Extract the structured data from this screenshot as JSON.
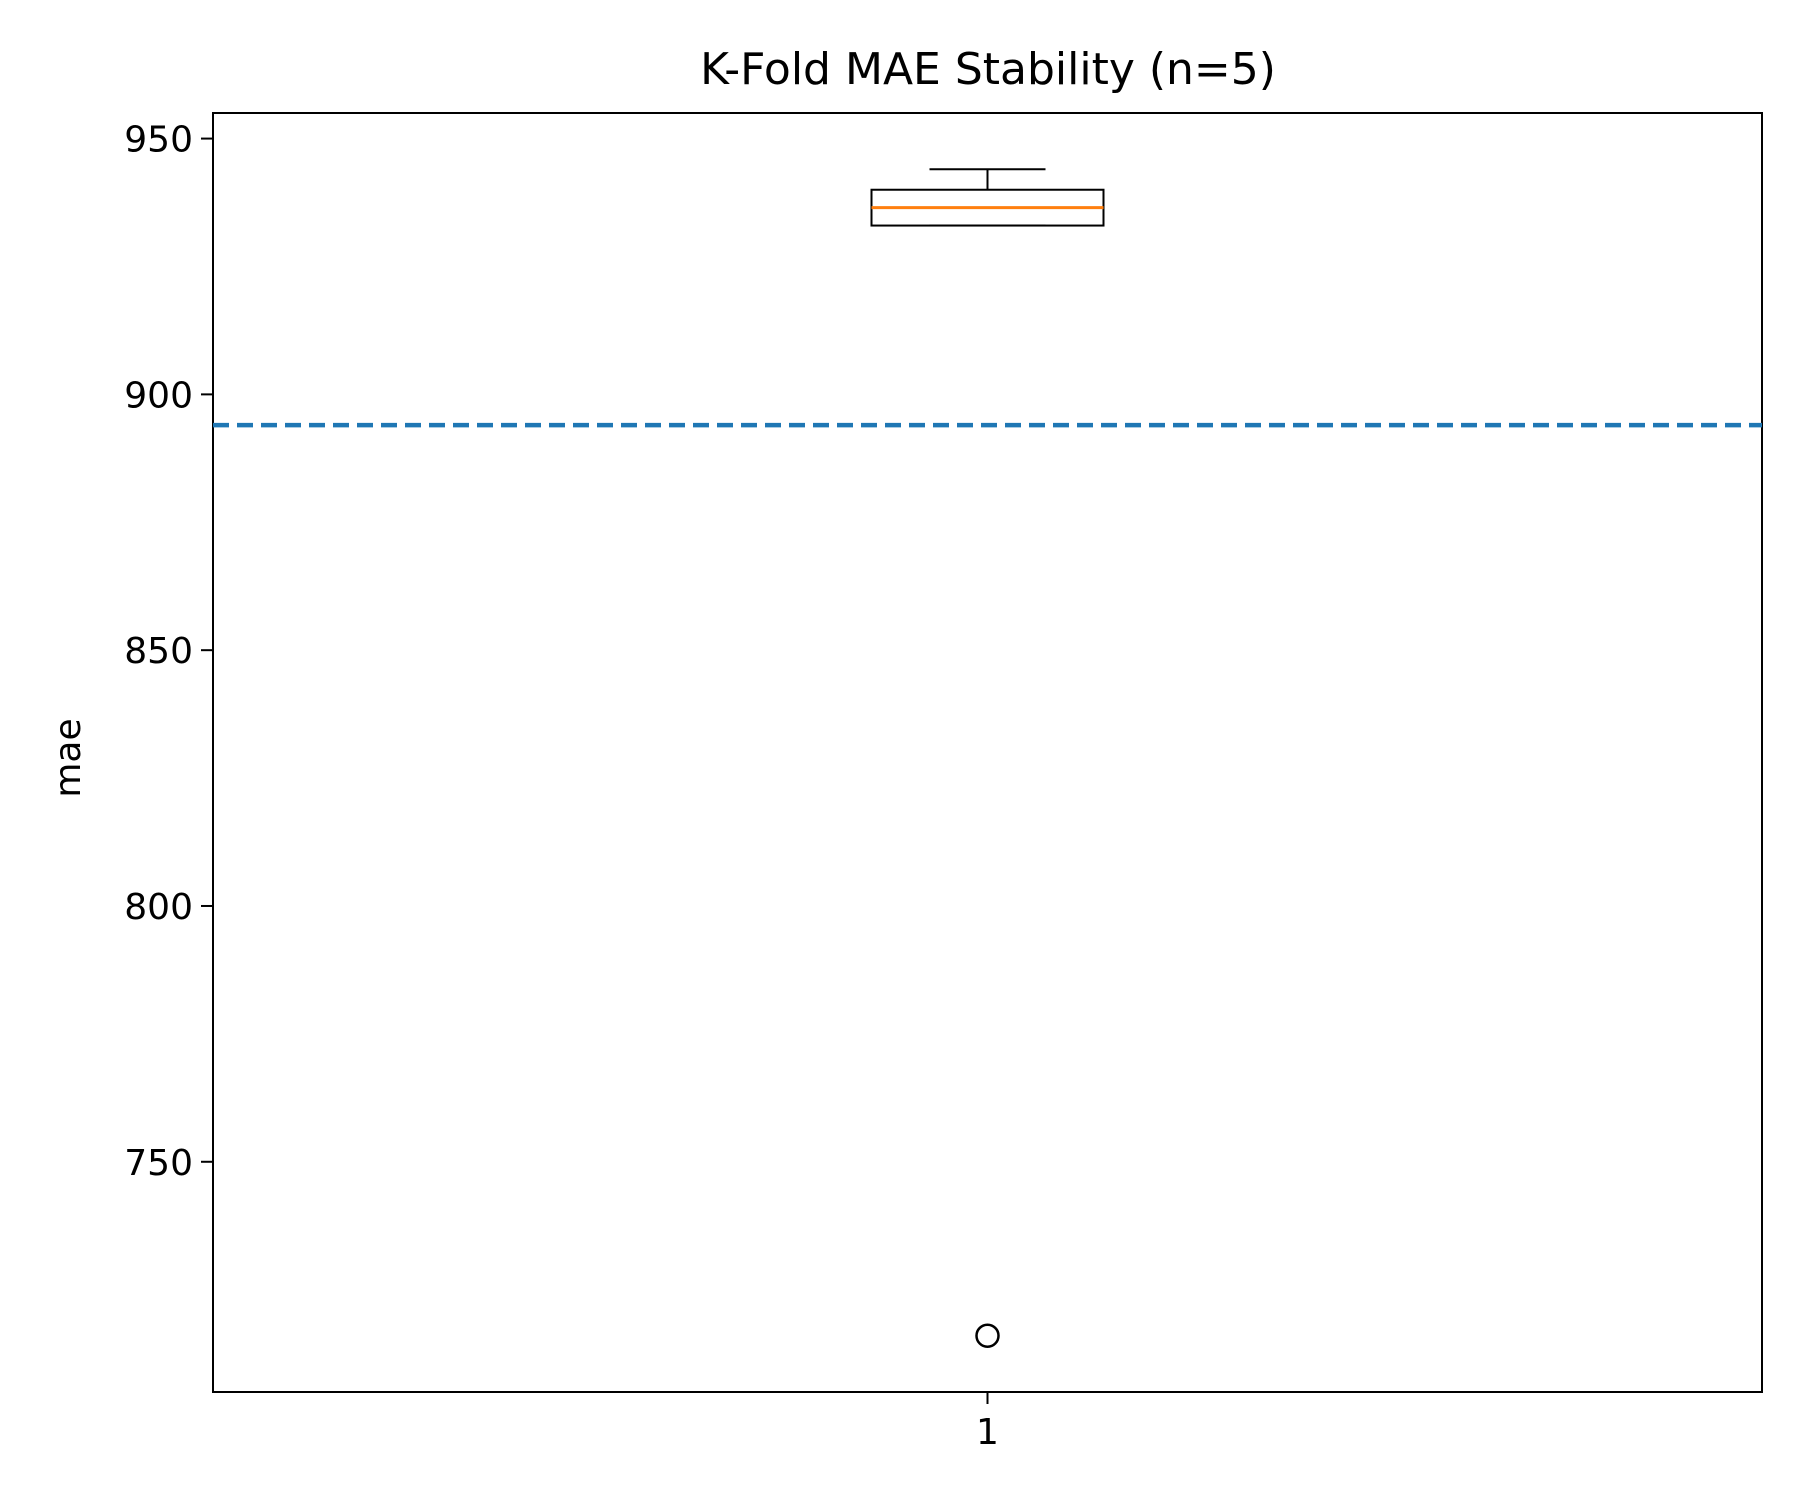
{
  "chart_data": {
    "type": "box",
    "title": "K-Fold MAE Stability (n=5)",
    "xlabel": "",
    "ylabel": "mae",
    "categories": [
      "1"
    ],
    "ylim": [
      705,
      955
    ],
    "yticks": [
      "750",
      "800",
      "850",
      "900",
      "950"
    ],
    "yticks_values": [
      750,
      800,
      850,
      900,
      950
    ],
    "box": {
      "q1": 933,
      "median": 936.5,
      "q3": 940,
      "whisker_low": 933,
      "whisker_high": 944,
      "outliers": [
        716
      ]
    },
    "reference_line": {
      "value": 894,
      "style": "dashed"
    },
    "grid": false,
    "legend": "none"
  },
  "colors": {
    "median": "#ff7f0e",
    "reference_line": "#1f77b4",
    "box": "#000000"
  }
}
